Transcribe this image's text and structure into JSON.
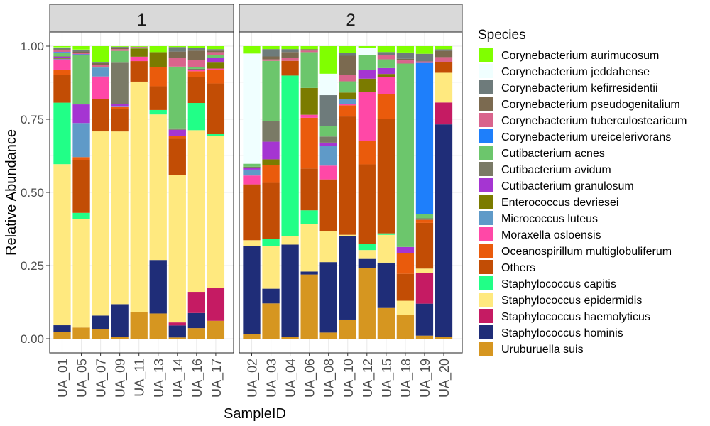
{
  "chart_data": {
    "type": "bar",
    "stacked": true,
    "facet_labels": [
      "1",
      "2"
    ],
    "xlabel": "SampleID",
    "ylabel": "Relative Abundance",
    "ylim": [
      0,
      1
    ],
    "y_ticks": [
      "0.00",
      "0.25",
      "0.50",
      "0.75",
      "1.00"
    ],
    "legend_title": "Species",
    "legend_position": "right",
    "species": [
      {
        "name": "Corynebacterium aurimucosum",
        "color": "#80ff00"
      },
      {
        "name": "Corynebacterium jeddahense",
        "color": "#f0ffff"
      },
      {
        "name": "Corynebacterium kefirresidentii",
        "color": "#6e7b7b"
      },
      {
        "name": "Corynebacterium pseudogenitalium",
        "color": "#7b6a50"
      },
      {
        "name": "Corynebacterium tuberculostearicum",
        "color": "#d9648c"
      },
      {
        "name": "Corynebacterium ureicelerivorans",
        "color": "#1e7ffb"
      },
      {
        "name": "Cutibacterium acnes",
        "color": "#6cc66c"
      },
      {
        "name": "Cutibacterium avidum",
        "color": "#7a7a66"
      },
      {
        "name": "Cutibacterium granulosum",
        "color": "#a535d2"
      },
      {
        "name": "Enterococcus devriesei",
        "color": "#7b7b00"
      },
      {
        "name": "Micrococcus luteus",
        "color": "#5f9ac8"
      },
      {
        "name": "Moraxella osloensis",
        "color": "#ff48a7"
      },
      {
        "name": "Oceanospirillum multiglobuliferum",
        "color": "#ea5b0c"
      },
      {
        "name": "Others",
        "color": "#c24d05"
      },
      {
        "name": "Staphylococcus capitis",
        "color": "#21ff87"
      },
      {
        "name": "Staphylococcus epidermidis",
        "color": "#ffe97f"
      },
      {
        "name": "Staphylococcus haemolyticus",
        "color": "#c51b63"
      },
      {
        "name": "Staphylococcus hominis",
        "color": "#1f2d78"
      },
      {
        "name": "Uruburuella suis",
        "color": "#d69620"
      }
    ],
    "facets": [
      {
        "label": "1",
        "samples": [
          {
            "id": "UA_01",
            "values": [
              0.004,
              0.003,
              0.003,
              0.004,
              0.006,
              0.002,
              0.012,
              0.002,
              0.004,
              0.003,
              0.002,
              0.035,
              0.018,
              0.095,
              0.21,
              0.55,
              0,
              0.022,
              0.024
            ]
          },
          {
            "id": "UA_05",
            "values": [
              0.011,
              0.002,
              0.004,
              0.004,
              0.005,
              0.002,
              0.16,
              0,
              0.06,
              0,
              0.11,
              0,
              0.01,
              0.17,
              0.02,
              0.35,
              0,
              0,
              0.036
            ]
          },
          {
            "id": "UA_07",
            "values": [
              0.055,
              0,
              0.002,
              0.006,
              0.008,
              0,
              0.001,
              0,
              0,
              0,
              0.03,
              0.075,
              0,
              0.11,
              0,
              0.62,
              0,
              0.047,
              0.031
            ]
          },
          {
            "id": "UA_09",
            "values": [
              0.002,
              0,
              0.002,
              0.006,
              0.006,
              0,
              0.04,
              0.14,
              0.007,
              0,
              0.001,
              0,
              0.01,
              0.075,
              0,
              0.585,
              0,
              0.11,
              0.007
            ]
          },
          {
            "id": "UA_11",
            "values": [
              0.002,
              0,
              0.001,
              0,
              0.003,
              0,
              0.002,
              0,
              0,
              0.028,
              0,
              0.015,
              0,
              0.07,
              0,
              0.785,
              0,
              0,
              0.092
            ]
          },
          {
            "id": "UA_13",
            "values": [
              0.02,
              0,
              0,
              0,
              0,
              0,
              0,
              0,
              0,
              0.05,
              0,
              0,
              0.065,
              0.08,
              0.015,
              0.49,
              0,
              0.18,
              0.085
            ]
          },
          {
            "id": "UA_14",
            "values": [
              0.003,
              0,
              0.015,
              0.02,
              0.03,
              0,
              0.205,
              0.005,
              0.02,
              0,
              0,
              0,
              0.01,
              0.12,
              0,
              0.49,
              0.01,
              0.04,
              0.004
            ]
          },
          {
            "id": "UA_16",
            "values": [
              0.005,
              0,
              0.01,
              0.03,
              0.025,
              0,
              0.005,
              0.003,
              0,
              0,
              0,
              0.005,
              0.02,
              0.085,
              0.09,
              0.535,
              0.07,
              0.05,
              0.035
            ]
          },
          {
            "id": "UA_17",
            "values": [
              0.01,
              0,
              0.005,
              0.005,
              0.01,
              0,
              0.01,
              0,
              0.015,
              0.02,
              0,
              0.005,
              0.045,
              0.17,
              0.005,
              0.51,
              0.11,
              0,
              0.06
            ]
          }
        ]
      },
      {
        "label": "2",
        "samples": [
          {
            "id": "UA_02",
            "values": [
              0.025,
              0.375,
              0,
              0,
              0,
              0,
              0.01,
              0.005,
              0.005,
              0,
              0.02,
              0.03,
              0,
              0.19,
              0,
              0.02,
              0,
              0.3,
              0.015
            ]
          },
          {
            "id": "UA_03",
            "values": [
              0.01,
              0,
              0.025,
              0.01,
              0.005,
              0,
              0.205,
              0.07,
              0.06,
              0.02,
              0,
              0,
              0.06,
              0.19,
              0.025,
              0.145,
              0,
              0.05,
              0.12
            ]
          },
          {
            "id": "UA_04",
            "values": [
              0.01,
              0,
              0.01,
              0.02,
              0.01,
              0,
              0,
              0,
              0,
              0,
              0,
              0,
              0,
              0.05,
              0.545,
              0.03,
              0,
              0.315,
              0.005
            ]
          },
          {
            "id": "UA_06",
            "values": [
              0.01,
              0,
              0,
              0.005,
              0.005,
              0,
              0.12,
              0,
              0,
              0.09,
              0,
              0.01,
              0.17,
              0.14,
              0.045,
              0.16,
              0,
              0.01,
              0.215
            ]
          },
          {
            "id": "UA_08",
            "values": [
              0.09,
              0.07,
              0.1,
              0,
              0,
              0,
              0.035,
              0.02,
              0.01,
              0,
              0.065,
              0.045,
              0,
              0.17,
              0,
              0.1,
              0,
              0.23,
              0.02
            ]
          },
          {
            "id": "UA_10",
            "values": [
              0.02,
              0,
              0.01,
              0.06,
              0.02,
              0,
              0.035,
              0,
              0,
              0.02,
              0.015,
              0.005,
              0.035,
              0.37,
              0,
              0.005,
              0,
              0.26,
              0.06
            ]
          },
          {
            "id": "UA_12",
            "values": [
              0.005,
              0.025,
              0,
              0,
              0,
              0,
              0.05,
              0,
              0.03,
              0.045,
              0,
              0.165,
              0.08,
              0.27,
              0.02,
              0.03,
              0,
              0.03,
              0.24
            ]
          },
          {
            "id": "UA_15",
            "values": [
              0.02,
              0,
              0.01,
              0,
              0.015,
              0,
              0.03,
              0,
              0.02,
              0.01,
              0,
              0.06,
              0.085,
              0.39,
              0.005,
              0.095,
              0,
              0.155,
              0.105
            ]
          },
          {
            "id": "UA_18",
            "values": [
              0.02,
              0,
              0.02,
              0.005,
              0.01,
              0,
              0.58,
              0,
              0.02,
              0,
              0,
              0,
              0.065,
              0.085,
              0,
              0.045,
              0,
              0,
              0.075
            ]
          },
          {
            "id": "UA_19",
            "values": [
              0.025,
              0,
              0.025,
              0,
              0.005,
              0.495,
              0.015,
              0.005,
              0,
              0,
              0,
              0,
              0.01,
              0.15,
              0,
              0.015,
              0.1,
              0.105,
              0.01
            ]
          },
          {
            "id": "UA_20",
            "values": [
              0.01,
              0,
              0.005,
              0.02,
              0.015,
              0,
              0,
              0,
              0,
              0,
              0,
              0,
              0,
              0.035,
              0,
              0.095,
              0.07,
              0.68,
              0.005
            ]
          }
        ]
      }
    ]
  }
}
